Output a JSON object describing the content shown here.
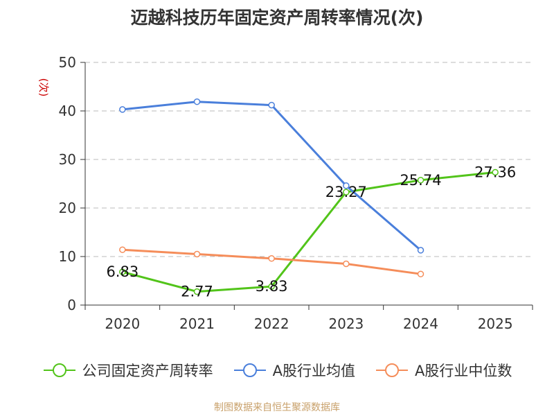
{
  "chart_data": {
    "type": "line",
    "title": "迈越科技历年固定资产周转率情况(次)",
    "ylabel": "(次)",
    "xlabel": "",
    "categories": [
      "2020",
      "2021",
      "2022",
      "2023",
      "2024",
      "2025"
    ],
    "ylim": [
      0,
      50
    ],
    "yticks": [
      0,
      10,
      20,
      30,
      40,
      50
    ],
    "grid": true,
    "legend_position": "bottom",
    "series": [
      {
        "name": "公司固定资产周转率",
        "color": "#52c41a",
        "values": [
          6.83,
          2.77,
          3.83,
          23.27,
          25.74,
          27.36
        ],
        "labels": [
          "6.83",
          "2.77",
          "3.83",
          "23.27",
          "25.74",
          "27.36"
        ]
      },
      {
        "name": "A股行业均值",
        "color": "#4a7fdb",
        "values": [
          40.3,
          41.9,
          41.2,
          24.6,
          11.3,
          null
        ]
      },
      {
        "name": "A股行业中位数",
        "color": "#f58d5a",
        "values": [
          11.4,
          10.5,
          9.6,
          8.5,
          6.4,
          null
        ]
      }
    ]
  },
  "source_note": "制图数据来自恒生聚源数据库",
  "colors": {
    "axis": "#333333",
    "grid": "#bbbbbb",
    "ylabel": "#cc0000"
  }
}
